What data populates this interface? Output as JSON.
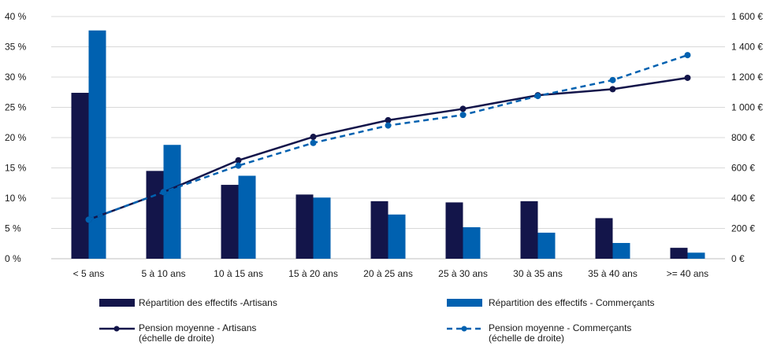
{
  "chart_data": {
    "type": "bar",
    "categories": [
      "< 5 ans",
      "5 à 10 ans",
      "10 à 15 ans",
      "15 à 20 ans",
      "20 à 25 ans",
      "25 à 30 ans",
      "30 à 35 ans",
      "35 à 40 ans",
      ">= 40 ans"
    ],
    "series": [
      {
        "name": "Répartition des effectifs -Artisans",
        "type": "bar",
        "axis": "left",
        "color": "#13154a",
        "values": [
          27.4,
          14.5,
          12.2,
          10.6,
          9.5,
          9.3,
          9.5,
          6.7,
          1.8
        ]
      },
      {
        "name": "Répartition des effectifs - Commerçants",
        "type": "bar",
        "axis": "left",
        "color": "#0061b0",
        "values": [
          37.7,
          18.8,
          13.7,
          10.1,
          7.3,
          5.2,
          4.3,
          2.6,
          1.0
        ]
      },
      {
        "name_lines": [
          "Pension moyenne - Artisans",
          "(échelle de droite)"
        ],
        "type": "line",
        "axis": "right",
        "color": "#13154a",
        "dashed": false,
        "values": [
          258,
          440,
          650,
          805,
          915,
          990,
          1080,
          1120,
          1195
        ]
      },
      {
        "name_lines": [
          "Pension moyenne - Commerçants",
          "(échelle de droite)"
        ],
        "type": "line",
        "axis": "right",
        "color": "#0061b0",
        "dashed": true,
        "values": [
          258,
          440,
          615,
          765,
          880,
          950,
          1075,
          1180,
          1345
        ]
      }
    ],
    "y_left": {
      "min": 0,
      "max": 40,
      "step": 5,
      "tick_labels": [
        "0 %",
        "5 %",
        "10 %",
        "15 %",
        "20 %",
        "25 %",
        "30 %",
        "35 %",
        "40 %"
      ]
    },
    "y_right": {
      "min": 0,
      "max": 1600,
      "step": 200,
      "tick_labels": [
        "0 €",
        "200 €",
        "400 €",
        "600 €",
        "800 €",
        "1 000 €",
        "1 200 €",
        "1 400 €",
        "1 600 €"
      ]
    },
    "grid": true,
    "legend_position": "bottom"
  }
}
